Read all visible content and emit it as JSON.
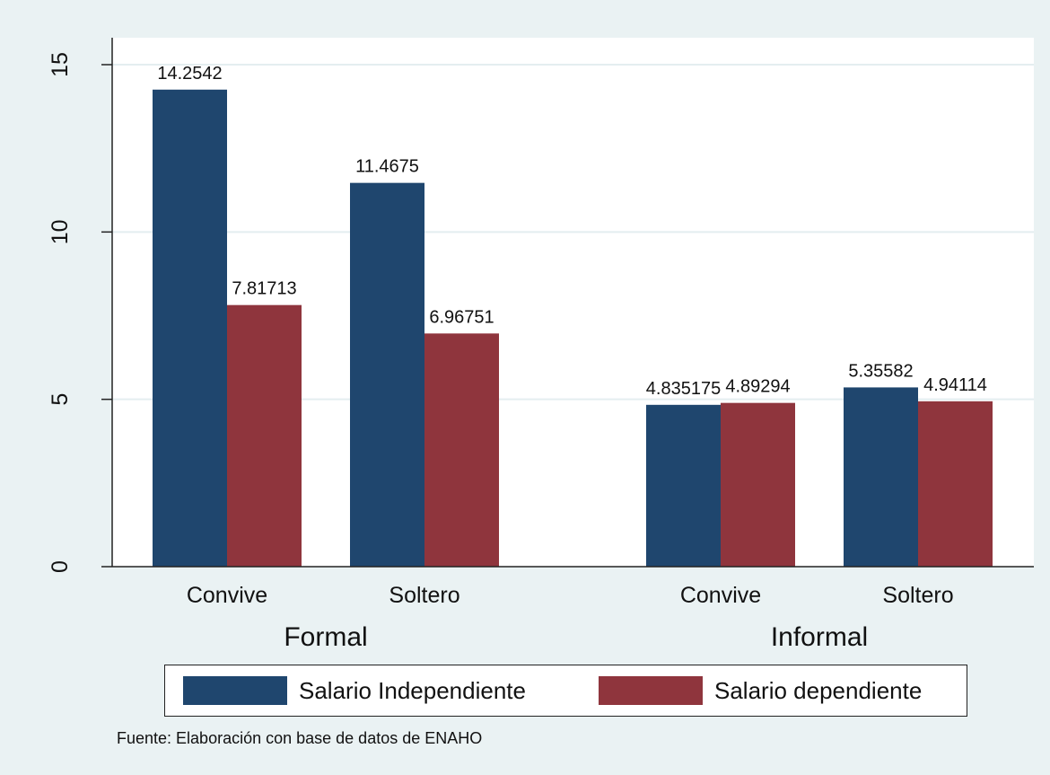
{
  "chart_data": {
    "type": "bar",
    "groups": [
      "Formal",
      "Informal"
    ],
    "categories": [
      "Convive",
      "Soltero"
    ],
    "series": [
      {
        "name": "Salario Independiente",
        "color": "#1f466e",
        "values": [
          [
            14.2542,
            11.4675
          ],
          [
            4.835175,
            5.35582
          ]
        ],
        "labels": [
          [
            "14.2542",
            "11.4675"
          ],
          [
            "4.835175",
            "5.35582"
          ]
        ]
      },
      {
        "name": "Salario dependiente",
        "color": "#8f353d",
        "values": [
          [
            7.81713,
            6.96751
          ],
          [
            4.89294,
            4.94114
          ]
        ],
        "labels": [
          [
            "7.81713",
            "6.96751"
          ],
          [
            "4.89294",
            "4.94114"
          ]
        ]
      }
    ],
    "y_ticks": [
      0,
      5,
      10,
      15
    ],
    "y_tick_labels": [
      "0",
      "5",
      "10",
      "15"
    ],
    "ylim": [
      0,
      15.5
    ],
    "grid": true,
    "legend_position": "bottom",
    "note": "Fuente: Elaboración con base de datos de ENAHO"
  }
}
